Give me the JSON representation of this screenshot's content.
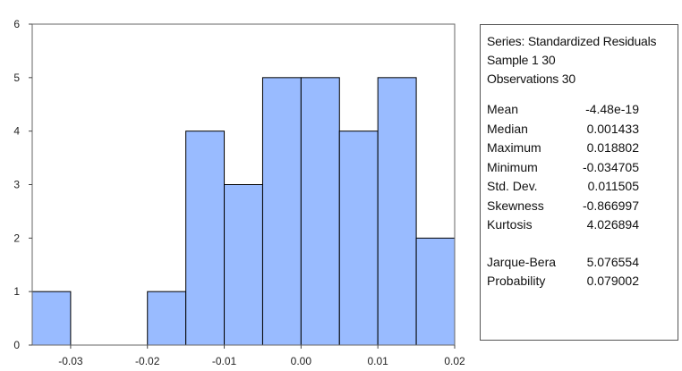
{
  "chart_data": {
    "type": "histogram",
    "bins": [
      {
        "x0": -0.035,
        "x1": -0.03,
        "count": 1
      },
      {
        "x0": -0.03,
        "x1": -0.025,
        "count": 0
      },
      {
        "x0": -0.025,
        "x1": -0.02,
        "count": 0
      },
      {
        "x0": -0.02,
        "x1": -0.015,
        "count": 1
      },
      {
        "x0": -0.015,
        "x1": -0.01,
        "count": 4
      },
      {
        "x0": -0.01,
        "x1": -0.005,
        "count": 3
      },
      {
        "x0": -0.005,
        "x1": 0.0,
        "count": 5
      },
      {
        "x0": 0.0,
        "x1": 0.005,
        "count": 5
      },
      {
        "x0": 0.005,
        "x1": 0.01,
        "count": 4
      },
      {
        "x0": 0.01,
        "x1": 0.015,
        "count": 5
      },
      {
        "x0": 0.015,
        "x1": 0.02,
        "count": 2
      }
    ],
    "xlim": [
      -0.035,
      0.02
    ],
    "ylim": [
      0,
      6
    ],
    "xticks": [
      -0.03,
      -0.02,
      -0.01,
      0.0,
      0.01,
      0.02
    ],
    "xtick_labels": [
      "-0.03",
      "-0.02",
      "-0.01",
      "0.00",
      "0.01",
      "0.02"
    ],
    "yticks": [
      0,
      1,
      2,
      3,
      4,
      5,
      6
    ],
    "ytick_labels": [
      "0",
      "1",
      "2",
      "3",
      "4",
      "5",
      "6"
    ],
    "bar_color": "#99bbff",
    "bar_edge_color": "#000000",
    "grid": false
  },
  "stats": {
    "header": [
      "Series: Standardized Residuals",
      "Sample 1 30",
      "Observations 30"
    ],
    "rows": [
      {
        "label": "Mean",
        "value": "-4.48e-19"
      },
      {
        "label": "Median",
        "value": "0.001433"
      },
      {
        "label": "Maximum",
        "value": "0.018802"
      },
      {
        "label": "Minimum",
        "value": "-0.034705"
      },
      {
        "label": "Std. Dev.",
        "value": "0.011505"
      },
      {
        "label": "Skewness",
        "value": "-0.866997"
      },
      {
        "label": "Kurtosis",
        "value": "4.026894"
      }
    ],
    "test_rows": [
      {
        "label": "Jarque-Bera",
        "value": "5.076554"
      },
      {
        "label": "Probability",
        "value": "0.079002"
      }
    ]
  }
}
